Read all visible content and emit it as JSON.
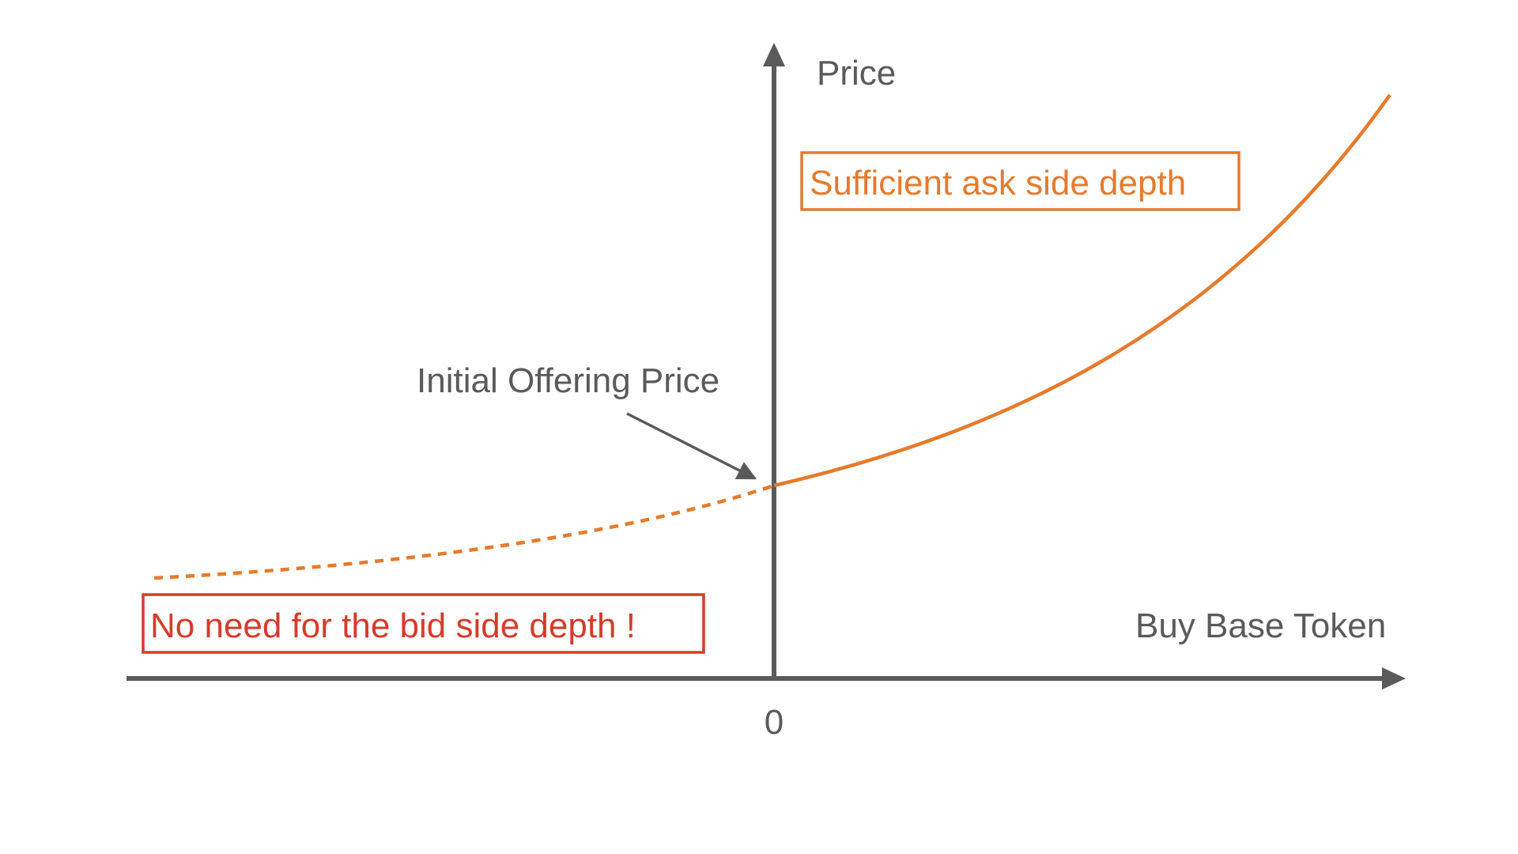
{
  "labels": {
    "y_axis": "Price",
    "x_axis": "Buy Base Token",
    "origin": "0",
    "initial_offering_price": "Initial Offering Price",
    "ask_side": "Sufficient ask side depth",
    "bid_side": "No need for the bid side depth !"
  },
  "colors": {
    "axis": "#5a5a5a",
    "curve": "#e57b2c",
    "ask_box": "#e57b2c",
    "bid_box": "#d63b2a"
  }
}
